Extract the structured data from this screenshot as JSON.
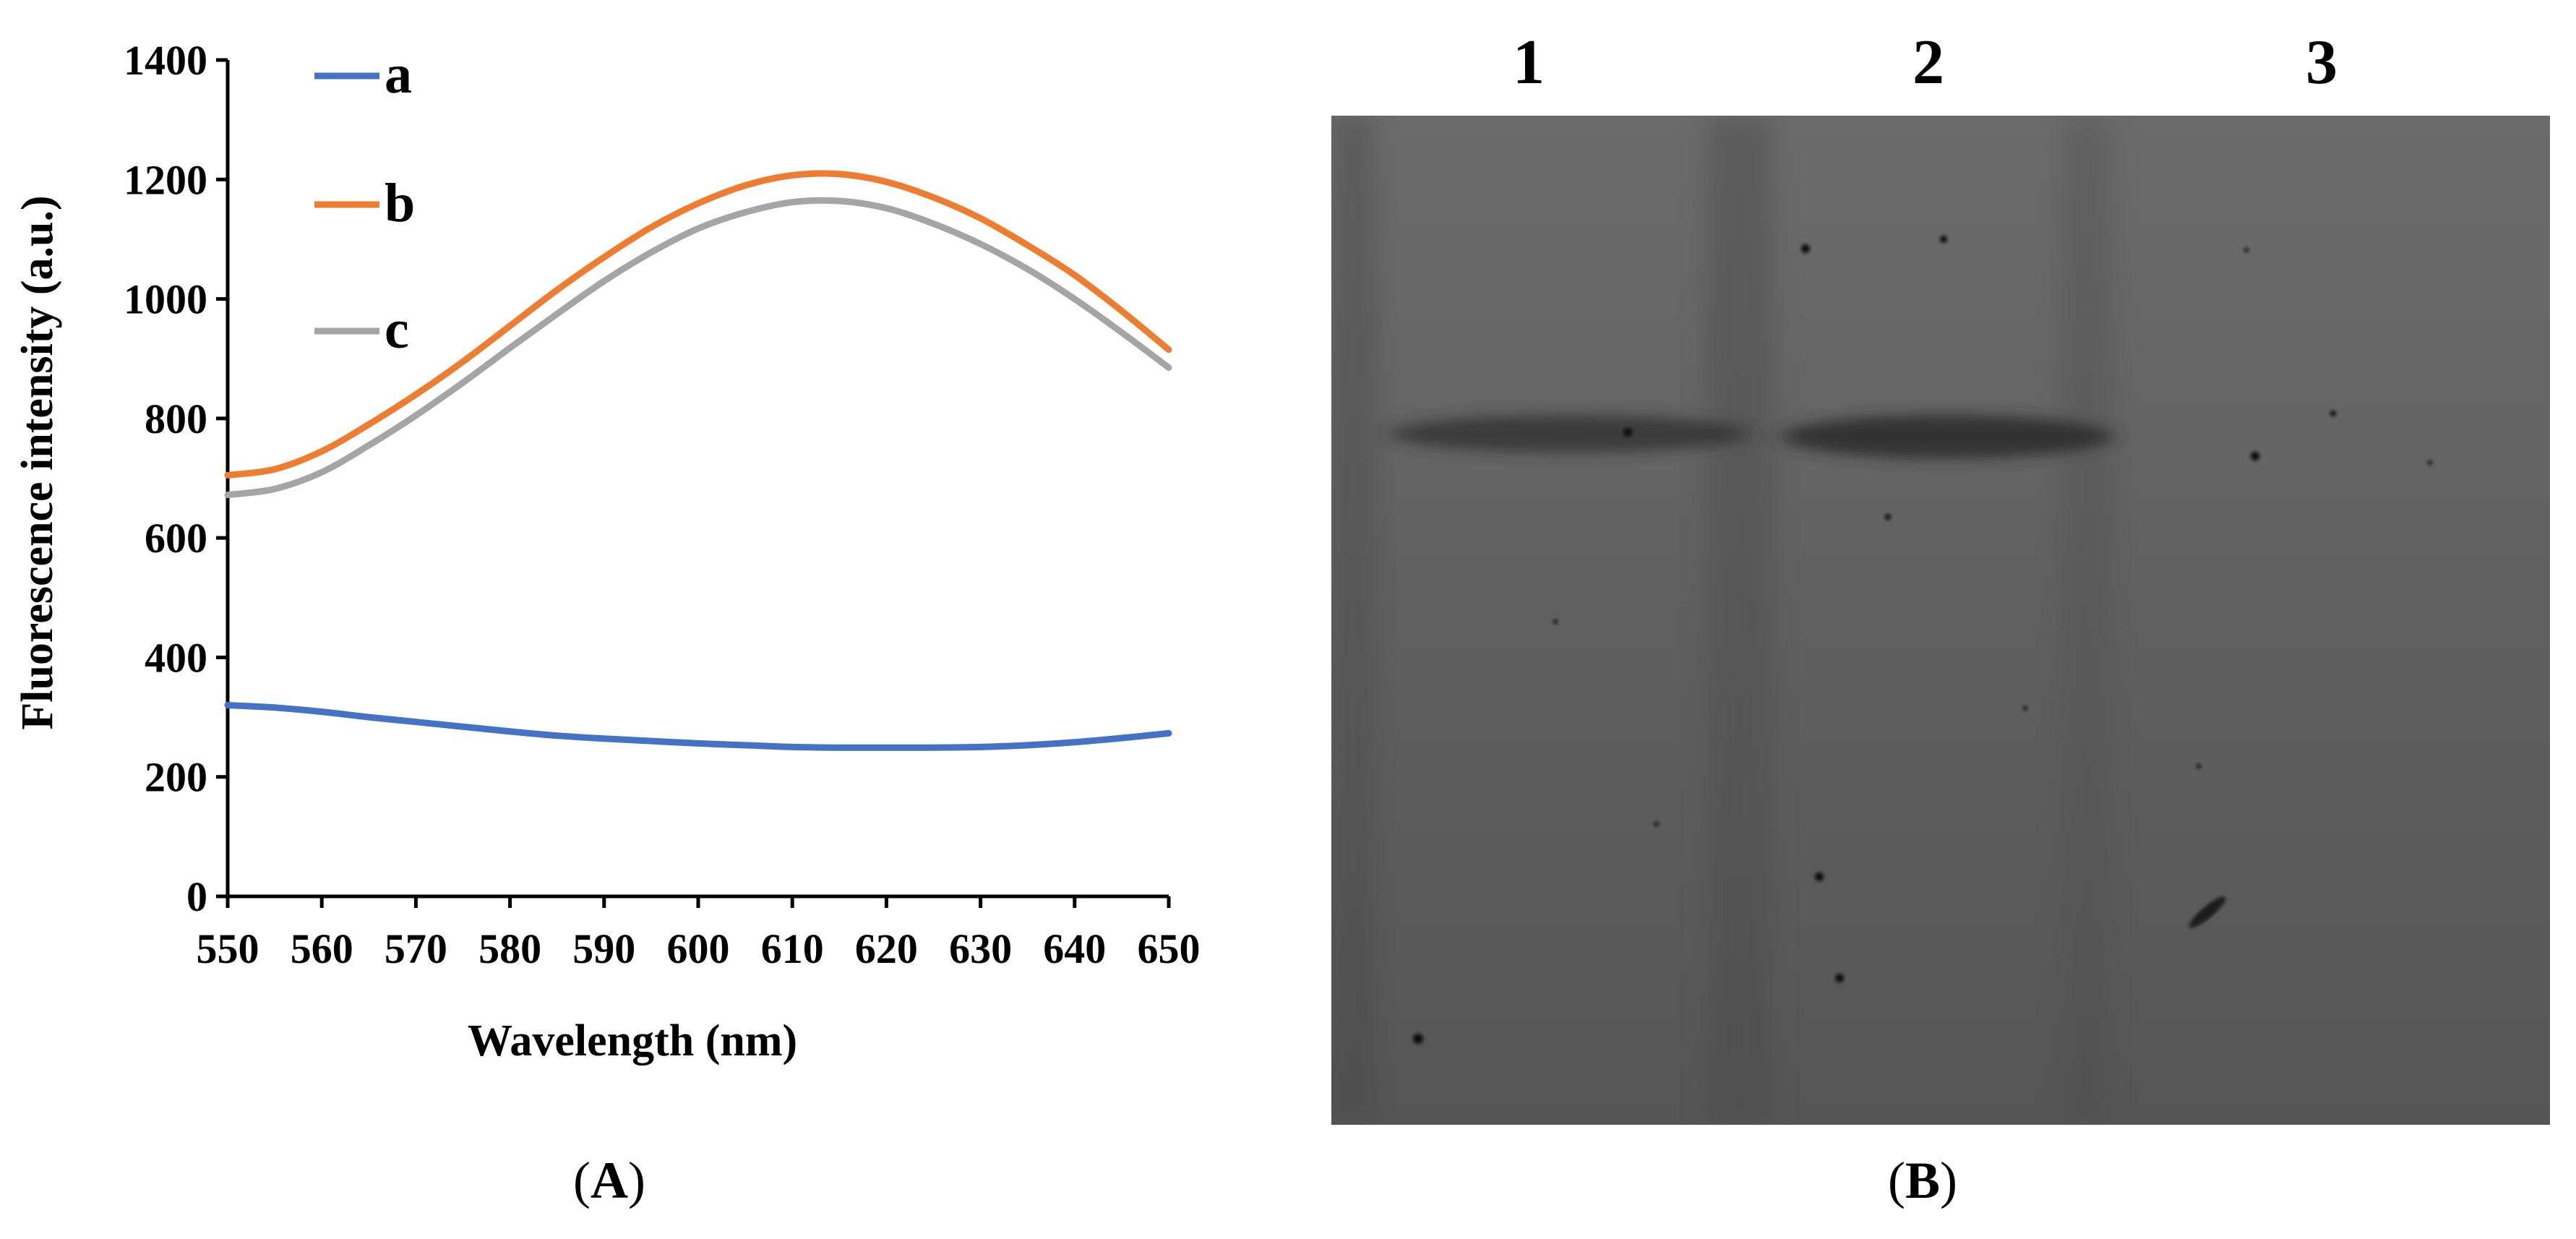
{
  "chart_data": {
    "type": "line",
    "xlabel": "Wavelength (nm)",
    "ylabel": "Fluorescence intensity (a.u.)",
    "xlim": [
      550,
      650
    ],
    "ylim": [
      0,
      1400
    ],
    "x_ticks": [
      "550",
      "560",
      "570",
      "580",
      "590",
      "600",
      "610",
      "620",
      "630",
      "640",
      "650"
    ],
    "y_ticks": [
      "0",
      "200",
      "400",
      "600",
      "800",
      "1000",
      "1200",
      "1400"
    ],
    "legend_position": "top-left",
    "grid": false,
    "x": [
      550,
      555,
      560,
      565,
      570,
      575,
      580,
      585,
      590,
      595,
      600,
      605,
      610,
      615,
      620,
      625,
      630,
      635,
      640,
      645,
      650
    ],
    "series": [
      {
        "name": "a",
        "color": "#4472C4",
        "values": [
          320,
          316,
          309,
          300,
          292,
          284,
          276,
          269,
          264,
          260,
          256,
          253,
          250,
          249,
          249,
          249,
          250,
          253,
          258,
          265,
          273
        ]
      },
      {
        "name": "b",
        "color": "#ED7D31",
        "values": [
          705,
          715,
          745,
          790,
          840,
          895,
          955,
          1015,
          1070,
          1120,
          1160,
          1190,
          1207,
          1209,
          1196,
          1170,
          1135,
          1090,
          1040,
          980,
          915
        ]
      },
      {
        "name": "c",
        "color": "#A5A5A5",
        "values": [
          672,
          682,
          710,
          755,
          805,
          860,
          918,
          975,
          1030,
          1078,
          1118,
          1145,
          1162,
          1164,
          1152,
          1126,
          1092,
          1050,
          1000,
          944,
          885
        ]
      }
    ]
  },
  "panel_labels": {
    "a": "A",
    "b": "B"
  },
  "gel": {
    "lane_labels": [
      "1",
      "2",
      "3"
    ],
    "background_color": "#5e5e5e",
    "band_color": "#2e2e2e"
  }
}
